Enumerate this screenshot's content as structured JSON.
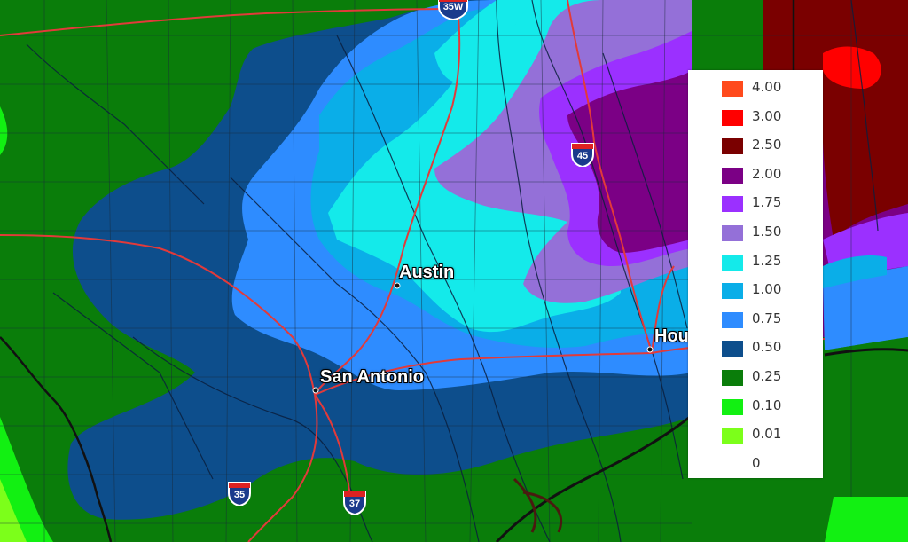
{
  "map": {
    "cities": [
      {
        "name": "Austin"
      },
      {
        "name": "San Antonio"
      },
      {
        "name": "Hou"
      }
    ],
    "shields": [
      {
        "label": "35W"
      },
      {
        "label": "45"
      },
      {
        "label": "35"
      },
      {
        "label": "37"
      }
    ]
  },
  "legend": {
    "items": [
      {
        "value": "4.00",
        "color": "#ff4a1c"
      },
      {
        "value": "3.00",
        "color": "#ff0000"
      },
      {
        "value": "2.50",
        "color": "#7a0000"
      },
      {
        "value": "2.00",
        "color": "#7b0085"
      },
      {
        "value": "1.75",
        "color": "#9b30ff"
      },
      {
        "value": "1.50",
        "color": "#9470d8"
      },
      {
        "value": "1.25",
        "color": "#14eaea"
      },
      {
        "value": "1.00",
        "color": "#0aaee8"
      },
      {
        "value": "0.75",
        "color": "#2e8cff"
      },
      {
        "value": "0.50",
        "color": "#0d4e8c"
      },
      {
        "value": "0.25",
        "color": "#0a7d0a"
      },
      {
        "value": "0.10",
        "color": "#12f012"
      },
      {
        "value": "0.01",
        "color": "#7cff1a"
      },
      {
        "value": "0",
        "color": "#ffffff"
      }
    ]
  }
}
